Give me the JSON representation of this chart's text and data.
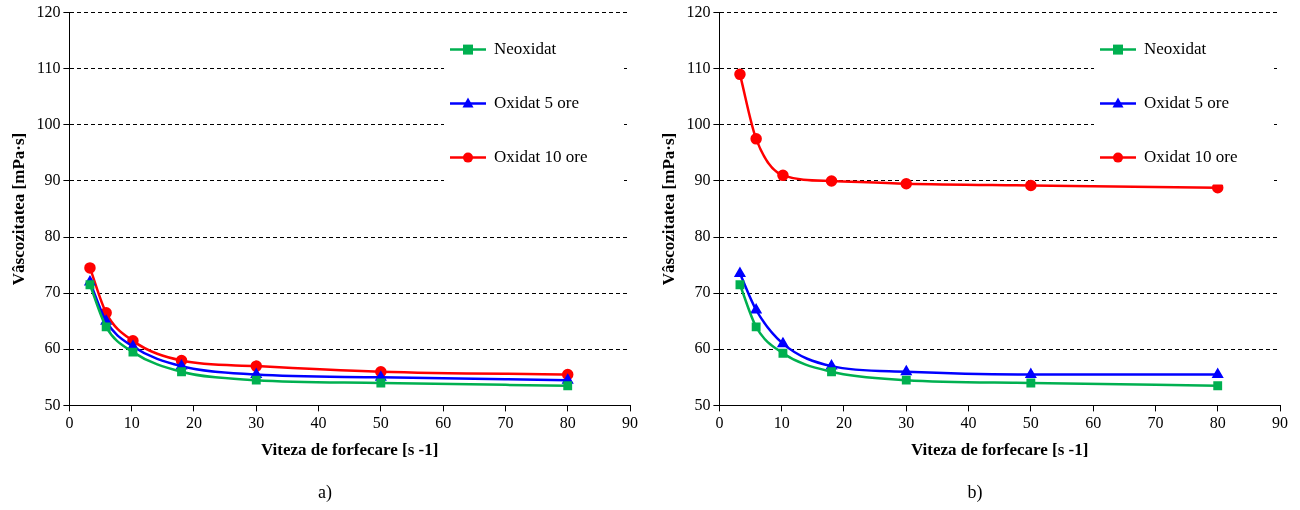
{
  "chart_data": [
    {
      "type": "line",
      "xlabel": "Viteza de forfecare [s -1]",
      "ylabel": "Vâscozitatea [mPa·s]",
      "x": [
        3.3,
        5.9,
        10.2,
        18,
        30,
        50,
        80
      ],
      "xlim": [
        0,
        90
      ],
      "xticks": [
        0,
        10,
        20,
        30,
        40,
        50,
        60,
        70,
        80,
        90
      ],
      "ylim": [
        50,
        120
      ],
      "yticks": [
        50,
        60,
        70,
        80,
        90,
        100,
        110,
        120
      ],
      "grid": "y",
      "legend": "top right",
      "annotations": [
        "a)"
      ],
      "series": [
        {
          "name": "Neoxidat",
          "color": "#00b050",
          "marker": "square",
          "values": [
            71.5,
            64,
            59.5,
            56,
            54.5,
            54,
            53.5
          ]
        },
        {
          "name": "Oxidat 5 ore",
          "color": "#0000ff",
          "marker": "triangle",
          "values": [
            72,
            65,
            60.5,
            57,
            55.5,
            55,
            54.5
          ]
        },
        {
          "name": "Oxidat 10 ore",
          "color": "#ff0000",
          "marker": "circle",
          "values": [
            74.5,
            66.5,
            61.5,
            58,
            57,
            56,
            55.5
          ]
        }
      ]
    },
    {
      "type": "line",
      "xlabel": "Viteza de forfecare [s -1]",
      "ylabel": "Vâscozitatea [mPa·s]",
      "x": [
        3.3,
        5.9,
        10.2,
        18,
        30,
        50,
        80
      ],
      "xlim": [
        0,
        90
      ],
      "xticks": [
        0,
        10,
        20,
        30,
        40,
        50,
        60,
        70,
        80,
        90
      ],
      "ylim": [
        50,
        120
      ],
      "yticks": [
        50,
        60,
        70,
        80,
        90,
        100,
        110,
        120
      ],
      "grid": "y",
      "legend": "top right",
      "annotations": [
        "b)"
      ],
      "series": [
        {
          "name": "Neoxidat",
          "color": "#00b050",
          "marker": "square",
          "values": [
            71.5,
            64,
            59.3,
            56,
            54.5,
            54,
            53.5
          ]
        },
        {
          "name": "Oxidat 5 ore",
          "color": "#0000ff",
          "marker": "triangle",
          "values": [
            73.5,
            67,
            61,
            57,
            56,
            55.5,
            55.5
          ]
        },
        {
          "name": "Oxidat 10 ore",
          "color": "#ff0000",
          "marker": "circle",
          "values": [
            109,
            97.5,
            91,
            90,
            89.5,
            89.2,
            88.8
          ]
        }
      ]
    }
  ]
}
